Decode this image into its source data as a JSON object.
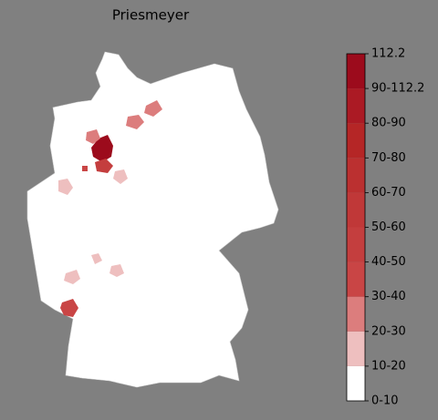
{
  "title": "Priesmeyer",
  "colorbar": {
    "labels": [
      "0-10",
      "10-20",
      "20-30",
      "30-40",
      "40-50",
      "50-60",
      "60-70",
      "70-80",
      "80-90",
      "90-112.2",
      "112.2"
    ],
    "colors": [
      "#ffffff",
      "#eebfbf",
      "#dc7d7d",
      "#c94545",
      "#c43e3e",
      "#c03838",
      "#bb3030",
      "#b52626",
      "#ab1a24",
      "#9c0b1c"
    ]
  }
}
